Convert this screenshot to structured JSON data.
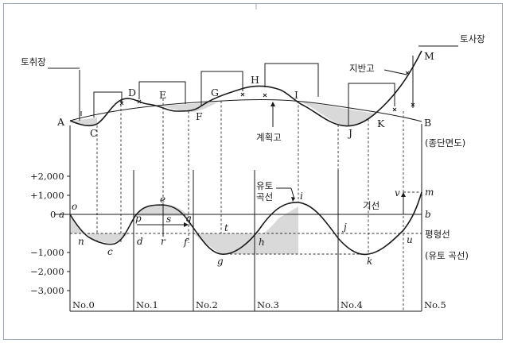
{
  "labels": {
    "borrow_pit": "토취장",
    "spoil_bank": "토사장",
    "ground_height": "지반고",
    "plan_height": "계획고",
    "profile": "(종단면도)",
    "mass_curve_1": "유토",
    "mass_curve_2": "곡선",
    "base_line": "기선",
    "balance_line": "평형선",
    "mass_curve_note": "(유토 곡선)"
  },
  "profile": {
    "A": "A",
    "B": "B",
    "C": "C",
    "D": "D",
    "E": "E",
    "F": "F",
    "G": "G",
    "H": "H",
    "I": "I",
    "J": "J",
    "K": "K",
    "M": "M"
  },
  "mass": {
    "a": "a",
    "o": "o",
    "n": "n",
    "c": "c",
    "d": "d",
    "p": "p",
    "e": "e",
    "s": "s",
    "r": "r",
    "q": "q",
    "f": "f",
    "g": "g",
    "t": "t",
    "h": "h",
    "i": "i",
    "j": "j",
    "k": "k",
    "u": "u",
    "v": "v",
    "m": "m",
    "b": "b"
  },
  "y_ticks": [
    "+2,000",
    "+1,000",
    "0",
    "−1,000",
    "−2,000",
    "−3,000"
  ],
  "stations": [
    "No.0",
    "No.1",
    "No.2",
    "No.3",
    "No.4",
    "No.5"
  ]
}
